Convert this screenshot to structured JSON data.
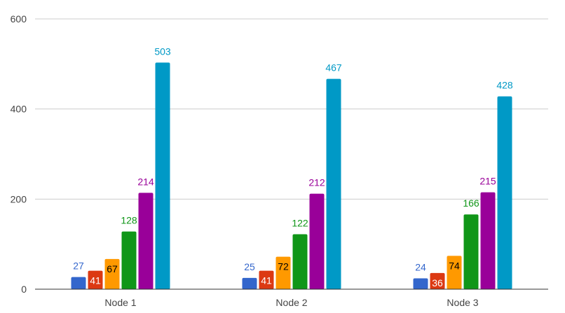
{
  "chart_data": {
    "type": "bar",
    "title": "",
    "xlabel": "",
    "ylabel": "",
    "categories": [
      "Node 1",
      "Node 2",
      "Node 3"
    ],
    "ylim": [
      0,
      600
    ],
    "yticks": [
      0,
      200,
      400,
      600
    ],
    "grid": true,
    "legend": "none",
    "series": [
      {
        "color": "#3366cc",
        "label_color": "#3366cc",
        "label_position": "above",
        "values": [
          27,
          25,
          24
        ]
      },
      {
        "color": "#dc3912",
        "label_color": "#ffffff",
        "label_position": "inside",
        "values": [
          41,
          41,
          36
        ]
      },
      {
        "color": "#ff9900",
        "label_color": "#000000",
        "label_position": "inside",
        "values": [
          67,
          72,
          74
        ]
      },
      {
        "color": "#109618",
        "label_color": "#109618",
        "label_position": "above",
        "values": [
          128,
          122,
          166
        ]
      },
      {
        "color": "#990099",
        "label_color": "#990099",
        "label_position": "above",
        "values": [
          214,
          212,
          215
        ]
      },
      {
        "color": "#0099c6",
        "label_color": "#0099c6",
        "label_position": "above",
        "values": [
          503,
          467,
          428
        ]
      }
    ]
  }
}
